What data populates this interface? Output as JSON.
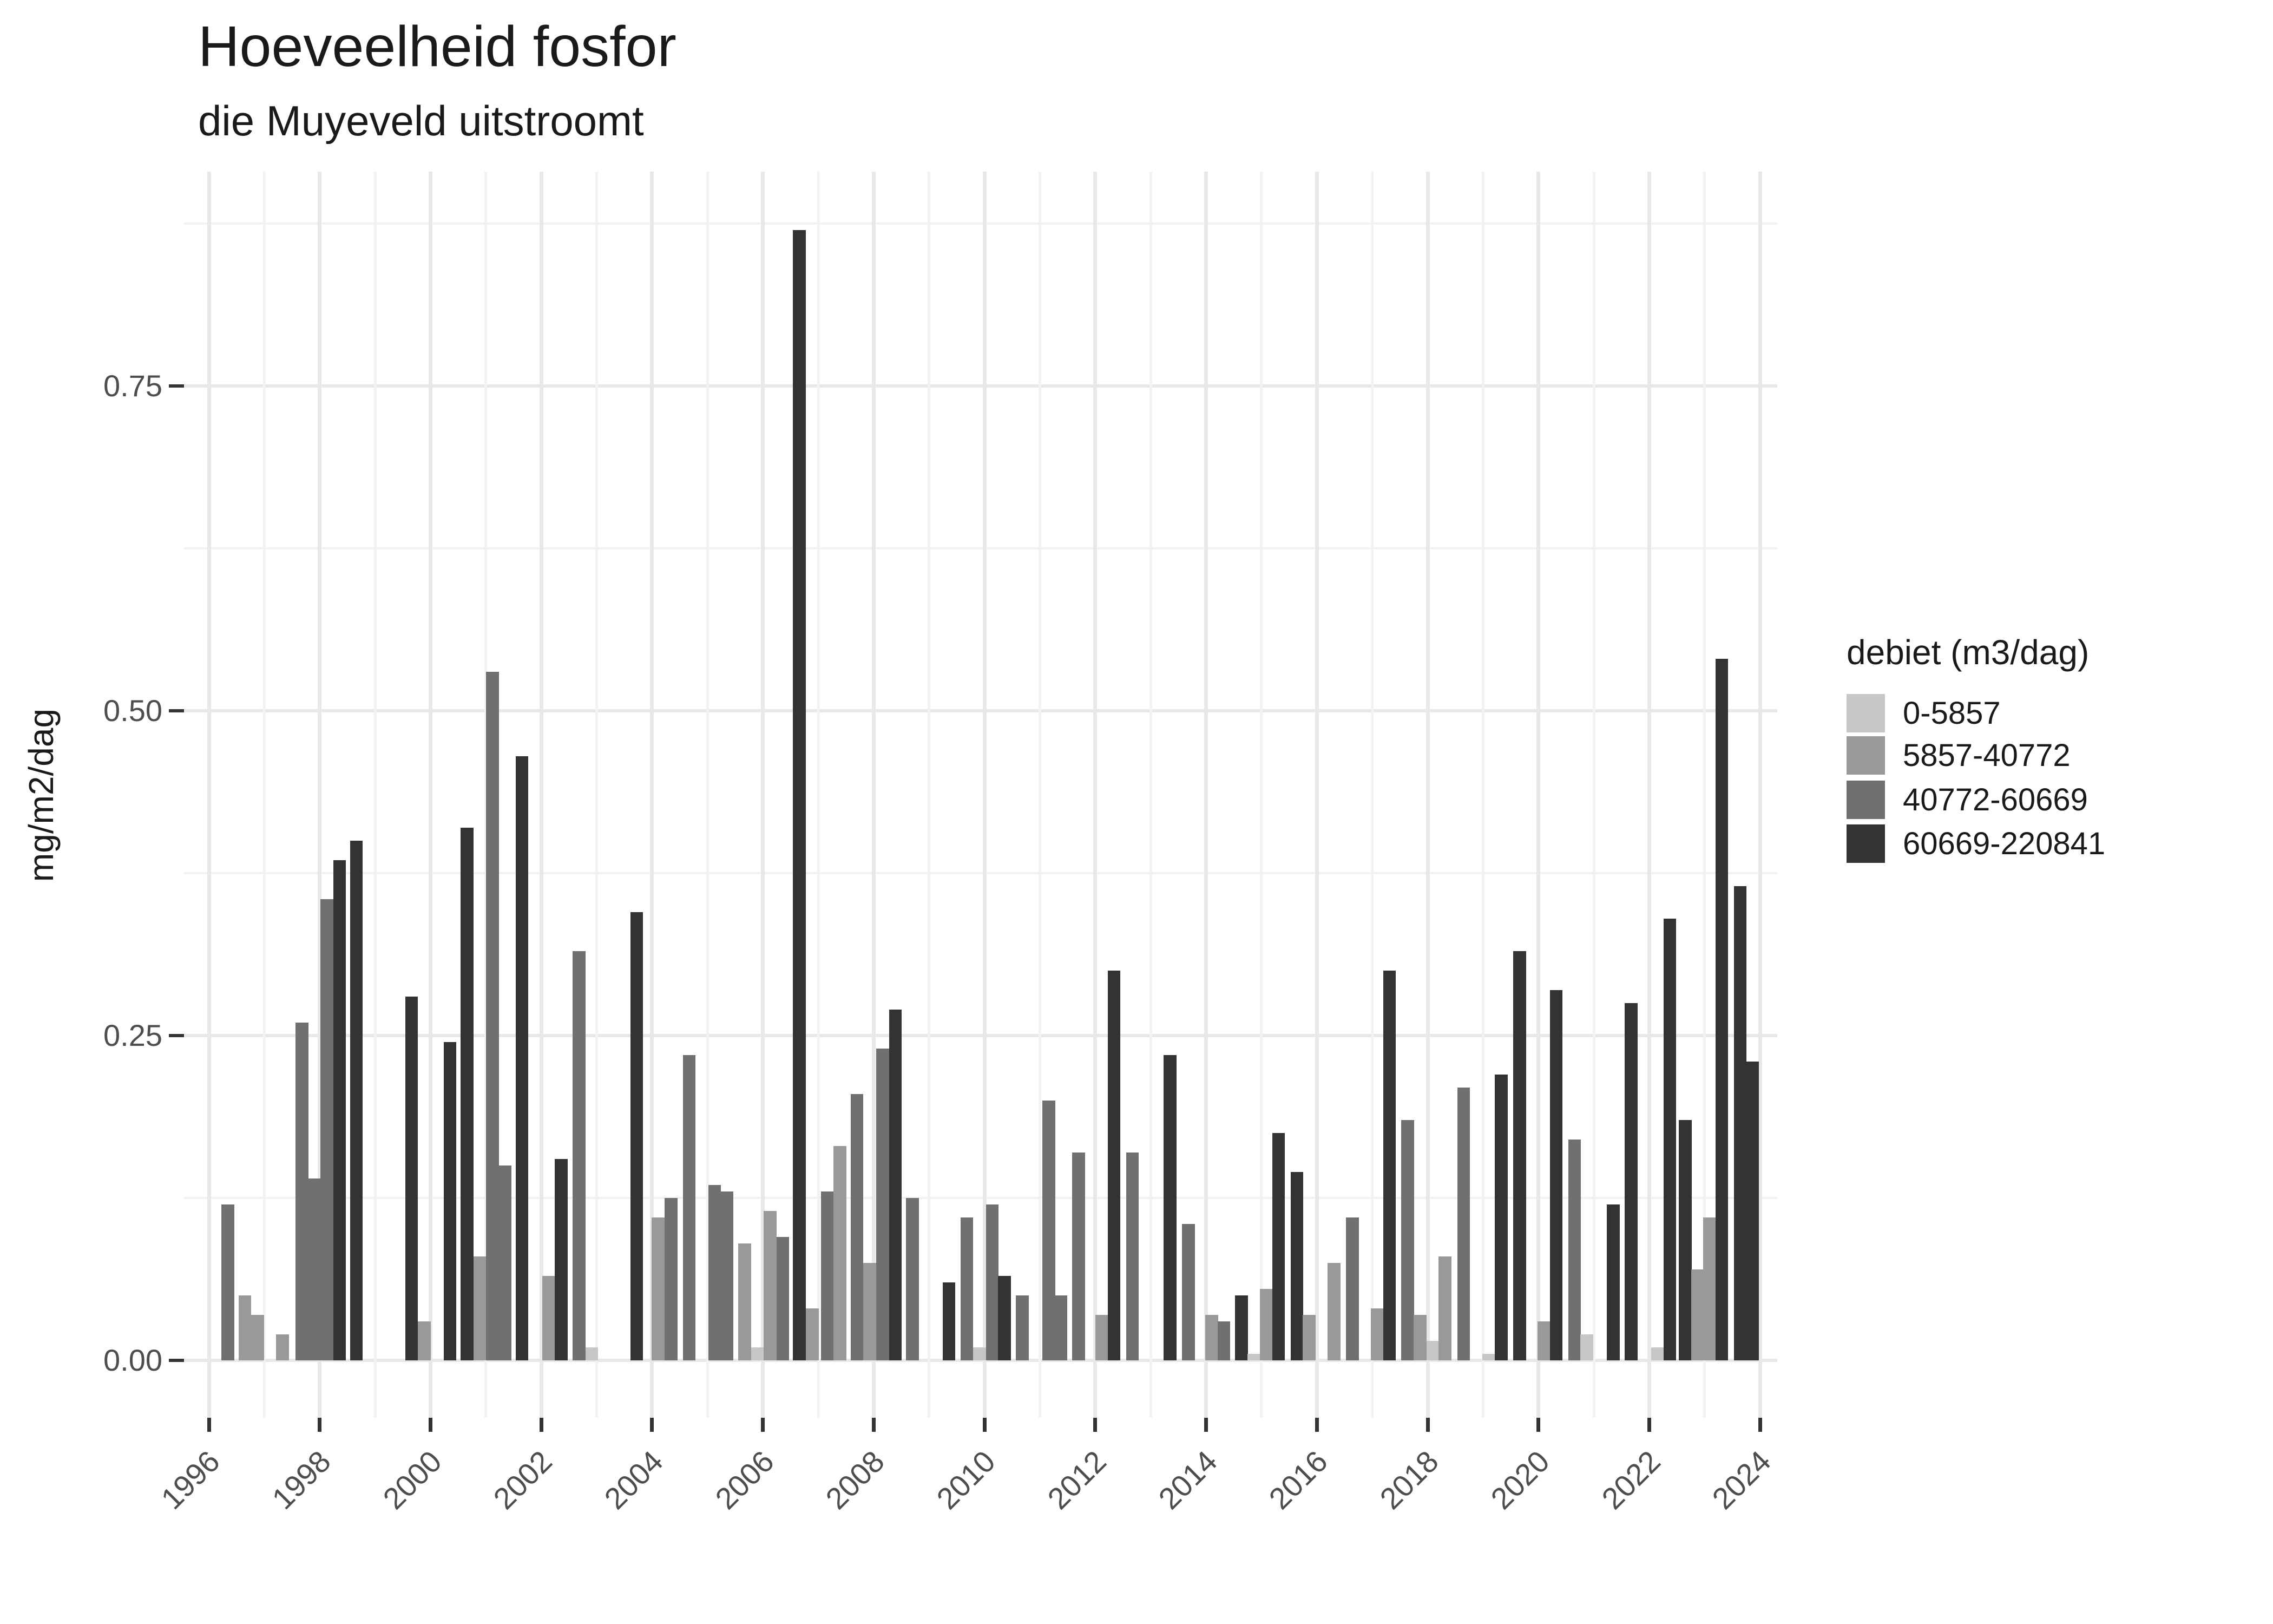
{
  "title": "Hoeveelheid fosfor",
  "subtitle": "die Muyeveld uitstroomt",
  "y_axis": {
    "title": "mg/m2/dag",
    "tick_labels": [
      "0.00",
      "0.25",
      "0.50",
      "0.75"
    ],
    "tick_values": [
      0,
      0.25,
      0.5,
      0.75
    ],
    "minor_values": [
      0.125,
      0.375,
      0.625,
      0.875
    ]
  },
  "x_axis": {
    "tick_labels": [
      "1996",
      "1998",
      "2000",
      "2002",
      "2004",
      "2006",
      "2008",
      "2010",
      "2012",
      "2014",
      "2016",
      "2018",
      "2020",
      "2022",
      "2024"
    ],
    "tick_values": [
      1996,
      1998,
      2000,
      2002,
      2004,
      2006,
      2008,
      2010,
      2012,
      2014,
      2016,
      2018,
      2020,
      2022,
      2024
    ]
  },
  "legend": {
    "title": "debiet (m3/dag)",
    "items": [
      {
        "label": "0-5857",
        "color": "#c6c6c6",
        "code": "L"
      },
      {
        "label": "5857-40772",
        "color": "#999999",
        "code": "M"
      },
      {
        "label": "40772-60669",
        "color": "#707070",
        "code": "D"
      },
      {
        "label": "60669-220841",
        "color": "#333333",
        "code": "K"
      }
    ]
  },
  "chart_data": {
    "type": "bar",
    "title": "Hoeveelheid fosfor",
    "subtitle": "die Muyeveld uitstroomt",
    "xlabel": "",
    "ylabel": "mg/m2/dag",
    "xlim": [
      1995.55,
      2024.31
    ],
    "ylim": [
      0,
      0.915
    ],
    "grid": true,
    "legend_position": "right",
    "bar_width_years": 0.23,
    "note": "t = decimal year position of each quarterly bar; cat = debiet (m3/dag) class; v = mg/m2/dag",
    "bars": [
      {
        "t": 1996.34,
        "cat": "D",
        "v": 0.12
      },
      {
        "t": 1996.65,
        "cat": "M",
        "v": 0.05
      },
      {
        "t": 1996.88,
        "cat": "M",
        "v": 0.035
      },
      {
        "t": 1997.33,
        "cat": "M",
        "v": 0.02
      },
      {
        "t": 1997.68,
        "cat": "D",
        "v": 0.26
      },
      {
        "t": 1997.91,
        "cat": "D",
        "v": 0.14
      },
      {
        "t": 1998.13,
        "cat": "D",
        "v": 0.355
      },
      {
        "t": 1998.36,
        "cat": "K",
        "v": 0.385
      },
      {
        "t": 1998.66,
        "cat": "K",
        "v": 0.4
      },
      {
        "t": 1999.66,
        "cat": "K",
        "v": 0.28
      },
      {
        "t": 1999.89,
        "cat": "M",
        "v": 0.03
      },
      {
        "t": 2000.35,
        "cat": "K",
        "v": 0.245
      },
      {
        "t": 2000.66,
        "cat": "K",
        "v": 0.41
      },
      {
        "t": 2000.89,
        "cat": "M",
        "v": 0.08
      },
      {
        "t": 2001.12,
        "cat": "D",
        "v": 0.53
      },
      {
        "t": 2001.35,
        "cat": "D",
        "v": 0.15
      },
      {
        "t": 2001.65,
        "cat": "K",
        "v": 0.465
      },
      {
        "t": 2002.13,
        "cat": "M",
        "v": 0.065
      },
      {
        "t": 2002.36,
        "cat": "K",
        "v": 0.155
      },
      {
        "t": 2002.68,
        "cat": "D",
        "v": 0.315
      },
      {
        "t": 2002.91,
        "cat": "L",
        "v": 0.01
      },
      {
        "t": 2003.72,
        "cat": "K",
        "v": 0.345
      },
      {
        "t": 2004.11,
        "cat": "M",
        "v": 0.11
      },
      {
        "t": 2004.34,
        "cat": "D",
        "v": 0.125
      },
      {
        "t": 2004.67,
        "cat": "D",
        "v": 0.235
      },
      {
        "t": 2005.13,
        "cat": "D",
        "v": 0.135
      },
      {
        "t": 2005.35,
        "cat": "D",
        "v": 0.13
      },
      {
        "t": 2005.67,
        "cat": "M",
        "v": 0.09
      },
      {
        "t": 2005.9,
        "cat": "L",
        "v": 0.01
      },
      {
        "t": 2006.13,
        "cat": "M",
        "v": 0.115
      },
      {
        "t": 2006.36,
        "cat": "D",
        "v": 0.095
      },
      {
        "t": 2006.66,
        "cat": "K",
        "v": 0.87
      },
      {
        "t": 2006.89,
        "cat": "M",
        "v": 0.04
      },
      {
        "t": 2007.16,
        "cat": "D",
        "v": 0.13
      },
      {
        "t": 2007.39,
        "cat": "M",
        "v": 0.165
      },
      {
        "t": 2007.7,
        "cat": "D",
        "v": 0.205
      },
      {
        "t": 2007.93,
        "cat": "M",
        "v": 0.075
      },
      {
        "t": 2008.16,
        "cat": "D",
        "v": 0.24
      },
      {
        "t": 2008.39,
        "cat": "K",
        "v": 0.27
      },
      {
        "t": 2008.7,
        "cat": "D",
        "v": 0.125
      },
      {
        "t": 2009.36,
        "cat": "K",
        "v": 0.06
      },
      {
        "t": 2009.68,
        "cat": "D",
        "v": 0.11
      },
      {
        "t": 2009.91,
        "cat": "L",
        "v": 0.01
      },
      {
        "t": 2010.14,
        "cat": "D",
        "v": 0.12
      },
      {
        "t": 2010.36,
        "cat": "K",
        "v": 0.065
      },
      {
        "t": 2010.68,
        "cat": "D",
        "v": 0.05
      },
      {
        "t": 2011.16,
        "cat": "D",
        "v": 0.2
      },
      {
        "t": 2011.38,
        "cat": "D",
        "v": 0.05
      },
      {
        "t": 2011.7,
        "cat": "D",
        "v": 0.16
      },
      {
        "t": 2012.12,
        "cat": "M",
        "v": 0.035
      },
      {
        "t": 2012.34,
        "cat": "K",
        "v": 0.3
      },
      {
        "t": 2012.67,
        "cat": "D",
        "v": 0.16
      },
      {
        "t": 2013.35,
        "cat": "K",
        "v": 0.235
      },
      {
        "t": 2013.68,
        "cat": "D",
        "v": 0.105
      },
      {
        "t": 2014.1,
        "cat": "M",
        "v": 0.035
      },
      {
        "t": 2014.32,
        "cat": "D",
        "v": 0.03
      },
      {
        "t": 2014.64,
        "cat": "K",
        "v": 0.05
      },
      {
        "t": 2014.86,
        "cat": "L",
        "v": 0.005
      },
      {
        "t": 2015.09,
        "cat": "M",
        "v": 0.055
      },
      {
        "t": 2015.31,
        "cat": "K",
        "v": 0.175
      },
      {
        "t": 2015.64,
        "cat": "K",
        "v": 0.145
      },
      {
        "t": 2015.86,
        "cat": "M",
        "v": 0.035
      },
      {
        "t": 2016.31,
        "cat": "M",
        "v": 0.075
      },
      {
        "t": 2016.64,
        "cat": "D",
        "v": 0.11
      },
      {
        "t": 2017.09,
        "cat": "M",
        "v": 0.04
      },
      {
        "t": 2017.31,
        "cat": "K",
        "v": 0.3
      },
      {
        "t": 2017.64,
        "cat": "D",
        "v": 0.185
      },
      {
        "t": 2017.86,
        "cat": "M",
        "v": 0.035
      },
      {
        "t": 2018.09,
        "cat": "L",
        "v": 0.015
      },
      {
        "t": 2018.31,
        "cat": "M",
        "v": 0.08
      },
      {
        "t": 2018.65,
        "cat": "D",
        "v": 0.21
      },
      {
        "t": 2019.1,
        "cat": "L",
        "v": 0.005
      },
      {
        "t": 2019.33,
        "cat": "K",
        "v": 0.22
      },
      {
        "t": 2019.66,
        "cat": "K",
        "v": 0.315
      },
      {
        "t": 2020.1,
        "cat": "M",
        "v": 0.03
      },
      {
        "t": 2020.32,
        "cat": "K",
        "v": 0.285
      },
      {
        "t": 2020.65,
        "cat": "D",
        "v": 0.17
      },
      {
        "t": 2020.87,
        "cat": "L",
        "v": 0.02
      },
      {
        "t": 2021.35,
        "cat": "K",
        "v": 0.12
      },
      {
        "t": 2021.67,
        "cat": "K",
        "v": 0.275
      },
      {
        "t": 2022.15,
        "cat": "L",
        "v": 0.01
      },
      {
        "t": 2022.37,
        "cat": "K",
        "v": 0.34
      },
      {
        "t": 2022.65,
        "cat": "K",
        "v": 0.185
      },
      {
        "t": 2022.87,
        "cat": "M",
        "v": 0.07
      },
      {
        "t": 2023.09,
        "cat": "M",
        "v": 0.11
      },
      {
        "t": 2023.31,
        "cat": "K",
        "v": 0.54
      },
      {
        "t": 2023.64,
        "cat": "K",
        "v": 0.365
      },
      {
        "t": 2023.86,
        "cat": "K",
        "v": 0.23
      }
    ]
  }
}
